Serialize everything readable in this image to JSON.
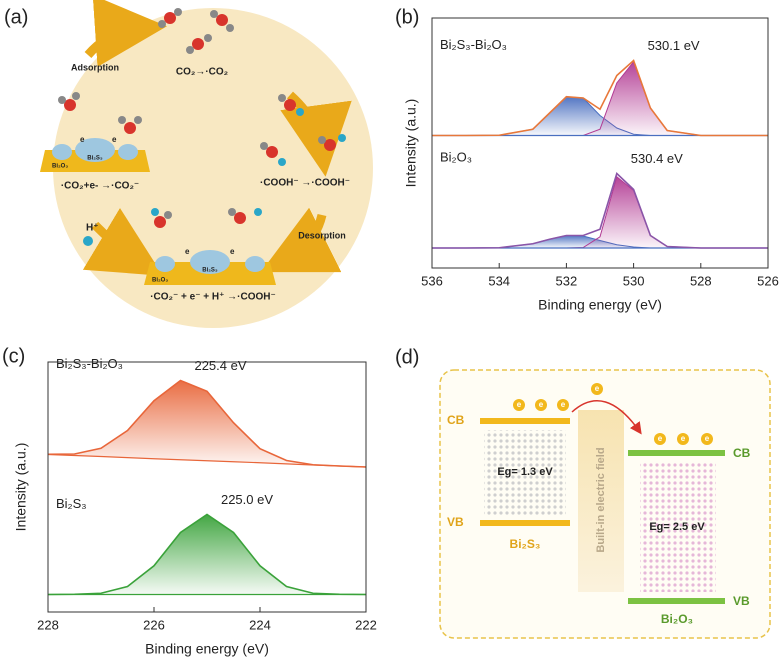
{
  "chart_data": [
    {
      "type": "line",
      "panel_label": "(b)",
      "xlabel": "Binding energy (eV)",
      "ylabel": "Intensity (a.u.)",
      "xlim": [
        536,
        526
      ],
      "xticks": [
        536,
        534,
        532,
        530,
        528,
        526
      ],
      "ylim": [
        0,
        100
      ],
      "x": [
        536,
        535,
        534,
        533,
        532.5,
        532,
        531.5,
        531,
        530.5,
        530,
        529.5,
        529,
        528,
        527,
        526
      ],
      "series": [
        {
          "name": "Bi₂S₃-Bi₂O₃",
          "color": "#e8783a",
          "peak_label": "530.1 eV",
          "values": [
            53,
            53,
            53.1,
            55.5,
            62,
            68.5,
            68,
            63.5,
            77,
            83,
            64,
            55,
            53,
            53,
            53
          ],
          "baseline": [
            53,
            53,
            53,
            53,
            53,
            53,
            53,
            53,
            53,
            53,
            53,
            53,
            53,
            53,
            53
          ],
          "components": [
            {
              "color": "#4a6fc0",
              "values": [
                53,
                53,
                53.1,
                55.5,
                62,
                68.5,
                68,
                61,
                56,
                53.5,
                53,
                53,
                53,
                53,
                53
              ]
            },
            {
              "color": "#b23a93",
              "values": [
                53,
                53,
                53,
                53,
                53,
                53,
                53,
                55.5,
                74,
                82.5,
                64,
                55,
                53,
                53,
                53
              ]
            }
          ]
        },
        {
          "name": "Bi₂O₃",
          "color": "#8a55a8",
          "peak_label": "530.4 eV",
          "values": [
            8,
            8,
            8.1,
            9.7,
            11.5,
            13,
            13,
            15.5,
            37.8,
            31.4,
            13,
            8.6,
            8,
            8,
            8
          ],
          "baseline": [
            8,
            8,
            8,
            8,
            8,
            8,
            8,
            8,
            8,
            8,
            8,
            8,
            8,
            8,
            8
          ],
          "components": [
            {
              "color": "#4a6fc0",
              "values": [
                8,
                8,
                8.1,
                9.7,
                11.5,
                13,
                12.8,
                11,
                9.3,
                8.4,
                8,
                8,
                8,
                8,
                8
              ]
            },
            {
              "color": "#b23a93",
              "values": [
                8,
                8,
                8,
                8,
                8,
                8,
                8.2,
                12.5,
                36.5,
                31,
                13,
                8.6,
                8,
                8,
                8
              ]
            }
          ]
        }
      ]
    },
    {
      "type": "line",
      "panel_label": "(c)",
      "xlabel": "Binding energy (eV)",
      "ylabel": "Intensity (a.u.)",
      "xlim": [
        228,
        222
      ],
      "xticks": [
        228,
        226,
        224,
        222
      ],
      "ylim": [
        0,
        100
      ],
      "x": [
        228,
        227.5,
        227,
        226.5,
        226,
        225.5,
        225,
        224.5,
        224,
        223.5,
        223,
        222.5,
        222
      ],
      "series": [
        {
          "name": "Bi₂S₃-Bi₂O₃",
          "color": "#e8663a",
          "peak_label": "225.4 eV",
          "fill": true,
          "values": [
            63.1,
            63.2,
            65.5,
            72.6,
            84.5,
            92.6,
            88.3,
            75.7,
            65.3,
            60.6,
            58.9,
            58.4,
            58
          ],
          "baseline": [
            63,
            62.6,
            62.2,
            61.75,
            61.3,
            60.9,
            60.5,
            60.1,
            59.7,
            59.25,
            58.8,
            58.4,
            58
          ]
        },
        {
          "name": "Bi₂S₃",
          "color": "#3aa23a",
          "peak_label": "225.0 eV",
          "fill": true,
          "values": [
            7,
            7.1,
            7.5,
            10.2,
            18.5,
            31.8,
            39,
            31.8,
            18.5,
            10.2,
            7.5,
            7.1,
            7
          ],
          "baseline": [
            7,
            7,
            7,
            7,
            7,
            7,
            7,
            7,
            7,
            7,
            7,
            7,
            7
          ]
        }
      ]
    }
  ],
  "diagram_a": {
    "label": "(a)",
    "adsorption": "Adsorption",
    "desorption": "Desorption",
    "step1": "CO₂→·CO₂",
    "step2": "·CO₂+e- →·CO₂⁻",
    "step3": "·COOH⁻ →·COOH⁻",
    "step4": "·CO₂⁻ + e⁻ + H⁺ →·COOH⁻",
    "proton": "H⁺",
    "catalyst_s": "Bi₂S₃",
    "catalyst_o": "Bi₂O₃",
    "electron": "e"
  },
  "diagram_d": {
    "label": "(d)",
    "cb": "CB",
    "vb": "VB",
    "left": "Bi₂S₃",
    "right": "Bi₂O₃",
    "eg_left": "Eg= 1.3 eV",
    "eg_right": "Eg= 2.5 eV",
    "field": "Built-in electric field",
    "electron": "e"
  }
}
